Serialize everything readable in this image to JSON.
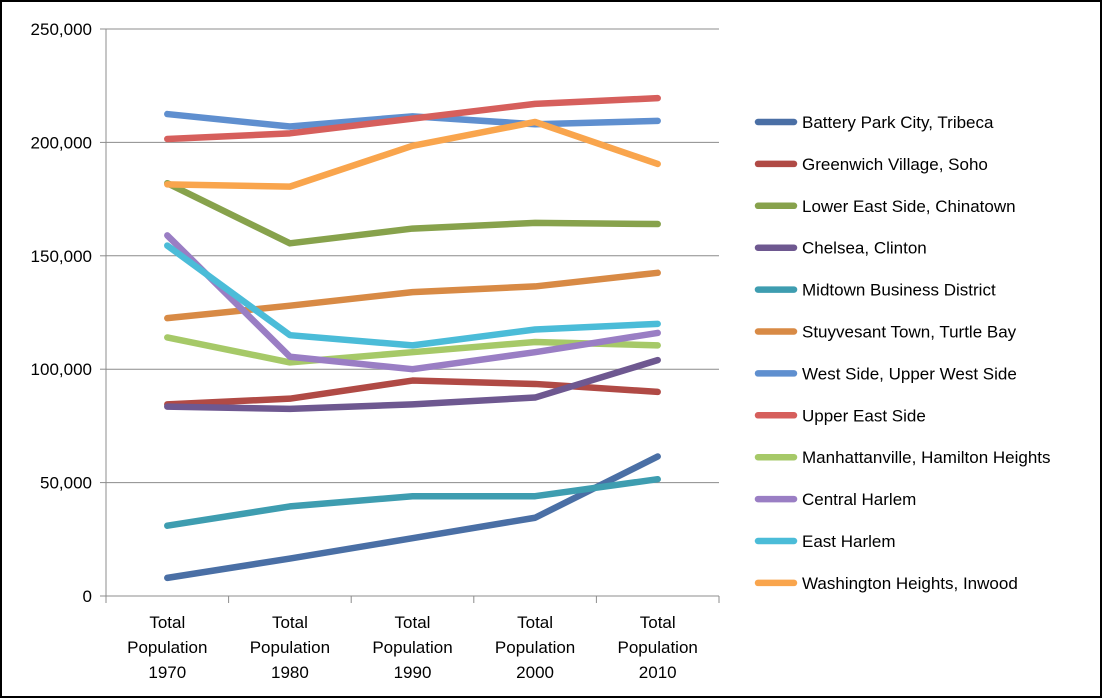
{
  "chart_data": {
    "type": "line",
    "title": "",
    "xlabel": "",
    "ylabel": "",
    "ylim": [
      0,
      250000
    ],
    "yticks": [
      0,
      50000,
      100000,
      150000,
      200000,
      250000
    ],
    "ytick_labels": [
      "0",
      "50,000",
      "100,000",
      "150,000",
      "200,000",
      "250,000"
    ],
    "grid": "horizontal",
    "legend": "right",
    "categories": [
      [
        "Total",
        "Population",
        "1970"
      ],
      [
        "Total",
        "Population",
        "1980"
      ],
      [
        "Total",
        "Population",
        "1990"
      ],
      [
        "Total",
        "Population",
        "2000"
      ],
      [
        "Total",
        "Population",
        "2010"
      ]
    ],
    "series": [
      {
        "name": "Battery Park City, Tribeca",
        "color": "#4A6FA5",
        "values": [
          8000,
          16500,
          25500,
          34500,
          61500
        ]
      },
      {
        "name": "Greenwich Village, Soho",
        "color": "#B04A45",
        "values": [
          84500,
          87000,
          95000,
          93500,
          90000
        ]
      },
      {
        "name": "Lower East Side, Chinatown",
        "color": "#87A24C",
        "values": [
          182000,
          155500,
          162000,
          164500,
          164000
        ]
      },
      {
        "name": "Chelsea, Clinton",
        "color": "#6E5890",
        "values": [
          83500,
          82500,
          84500,
          87500,
          104000
        ]
      },
      {
        "name": "Midtown Business District",
        "color": "#3E9DB0",
        "values": [
          31000,
          39500,
          44000,
          44000,
          51500
        ]
      },
      {
        "name": "Stuyvesant Town, Turtle Bay",
        "color": "#D88A45",
        "values": [
          122500,
          128000,
          134000,
          136500,
          142500
        ]
      },
      {
        "name": "West Side, Upper West Side",
        "color": "#5F8FCF",
        "values": [
          212500,
          207000,
          211500,
          208000,
          209500
        ]
      },
      {
        "name": "Upper East Side",
        "color": "#D65F5C",
        "values": [
          201500,
          204000,
          210500,
          217000,
          219500
        ]
      },
      {
        "name": "Manhattanville, Hamilton Heights",
        "color": "#A6C968",
        "values": [
          114000,
          103000,
          107500,
          112000,
          110500
        ]
      },
      {
        "name": "Central Harlem",
        "color": "#9A7EC4",
        "values": [
          159000,
          105500,
          100000,
          107500,
          116000
        ]
      },
      {
        "name": "East Harlem",
        "color": "#4BBCD8",
        "values": [
          154500,
          115000,
          110500,
          117500,
          120000
        ]
      },
      {
        "name": "Washington Heights, Inwood",
        "color": "#F9A54D",
        "values": [
          181500,
          180500,
          198500,
          209000,
          190500
        ]
      }
    ]
  }
}
